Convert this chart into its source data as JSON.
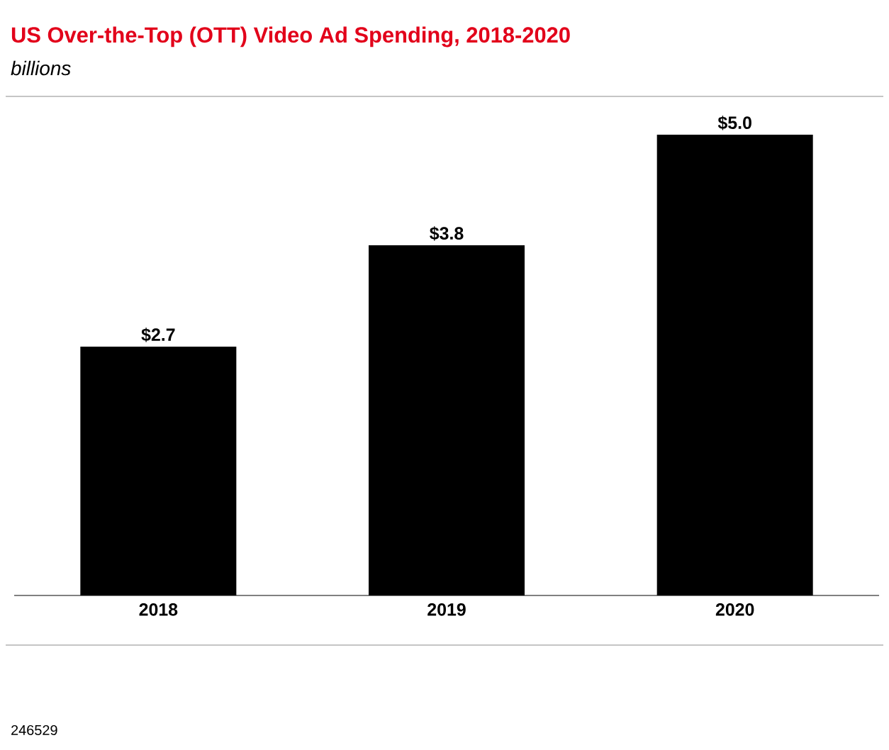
{
  "chart_data": {
    "type": "bar",
    "title": "US Over-the-Top (OTT) Video Ad Spending, 2018-2020",
    "subtitle": "billions",
    "categories": [
      "2018",
      "2019",
      "2020"
    ],
    "values": [
      2.7,
      3.8,
      5.0
    ],
    "value_labels": [
      "$2.7",
      "$3.8",
      "$5.0"
    ],
    "color": "#000000",
    "annotations": [
      "246529"
    ]
  }
}
